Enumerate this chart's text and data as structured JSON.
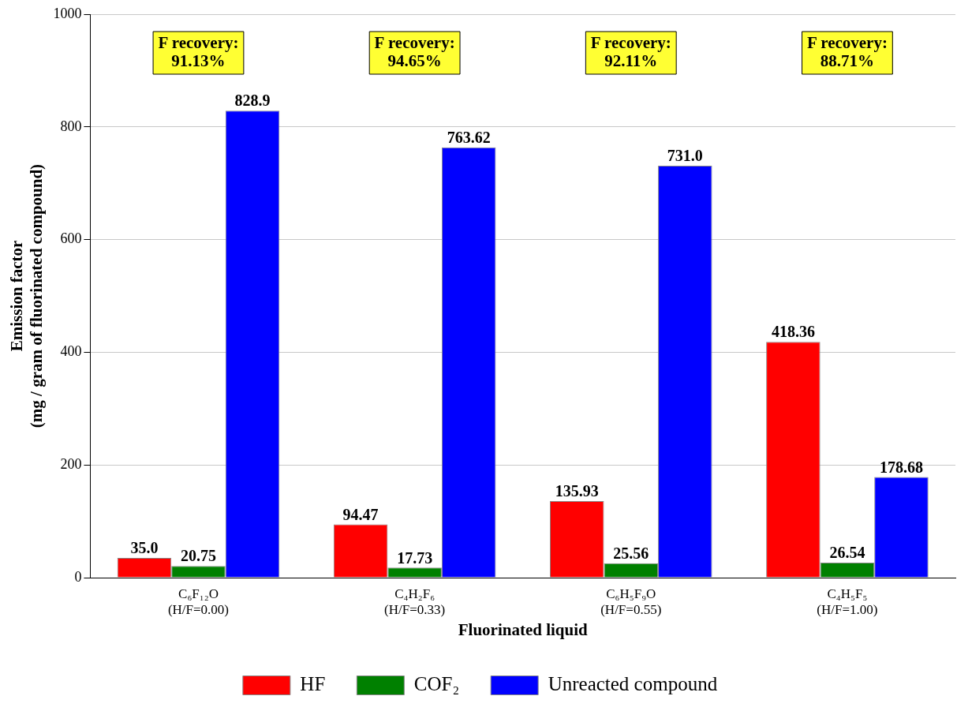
{
  "chart_data": {
    "type": "bar",
    "xlabel": "Fluorinated liquid",
    "ylabel": "Emission factor\n(mg / gram of fluorinated compound)",
    "categories": [
      "C₆F₁₂O\n(H/F=0.00)",
      "C₄H₂F₆\n(H/F=0.33)",
      "C₆H₅F₉O\n(H/F=0.55)",
      "C₄H₅F₅\n(H/F=1.00)"
    ],
    "series": [
      {
        "name": "HF",
        "color": "#ff0000",
        "values": [
          35.0,
          94.47,
          135.93,
          418.36
        ],
        "value_labels": [
          "35.0",
          "94.47",
          "135.93",
          "418.36"
        ]
      },
      {
        "name": "COF₂",
        "color": "#008000",
        "values": [
          20.75,
          17.73,
          25.56,
          26.54
        ],
        "value_labels": [
          "20.75",
          "17.73",
          "25.56",
          "26.54"
        ]
      },
      {
        "name": "Unreacted compound",
        "color": "#0000ff",
        "values": [
          828.9,
          763.62,
          731.0,
          178.68
        ],
        "value_labels": [
          "828.9",
          "763.62",
          "731.0",
          "178.68"
        ]
      }
    ],
    "annotations": [
      "F recovery:\n91.13%",
      "F recovery:\n94.65%",
      "F recovery:\n92.11%",
      "F recovery:\n88.71%"
    ],
    "ylim": [
      0,
      1000
    ],
    "yticks": [
      0,
      200,
      400,
      600,
      800,
      1000
    ],
    "grid": "y",
    "legend": "bottom"
  }
}
